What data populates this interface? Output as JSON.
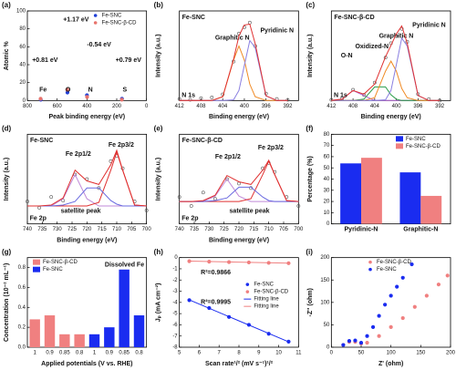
{
  "chart_data": [
    {
      "type": "scatter",
      "panel": "(a)",
      "ylabel": "Atomic %",
      "xlabel": "Peak binding energy (eV)",
      "xlim": [
        800,
        0
      ],
      "xticks": [
        800,
        600,
        400,
        200,
        0
      ],
      "ylim": [
        0,
        100
      ],
      "yticks": [
        0,
        20,
        40,
        60,
        80,
        100
      ],
      "legend": "upper right",
      "series": [
        {
          "name": "Fe-SNC",
          "color": "#1f3fd6",
          "x": [
            710,
            531,
            400,
            165
          ],
          "values": [
            1,
            9,
            6,
            2
          ]
        },
        {
          "name": "Fe-SNC-β-CD",
          "color": "#e8736c",
          "x": [
            711,
            532,
            399,
            166
          ],
          "values": [
            2,
            12,
            4,
            1
          ]
        }
      ],
      "annotations": [
        "Fe",
        "O",
        "N",
        "S",
        "+0.81 eV",
        "+1.17 eV",
        "-0.54 eV",
        "+0.79 eV"
      ]
    },
    {
      "type": "line",
      "panel": "(b)",
      "title": "Fe-SNC",
      "ylabel": "Intensity (a.u.)",
      "xlabel": "Binding energy (eV)",
      "xlim": [
        412,
        390
      ],
      "xticks": [
        412,
        408,
        404,
        400,
        396,
        392
      ],
      "ylim": [
        0,
        115
      ],
      "x": [
        412,
        410,
        408,
        406,
        404,
        402,
        401,
        400,
        399,
        398,
        396,
        394,
        392
      ],
      "series": [
        {
          "color": "#555555",
          "mode": "open-markers",
          "values": [
            2,
            1,
            3,
            4,
            8,
            50,
            86,
            94,
            100,
            70,
            9,
            2,
            1
          ]
        },
        {
          "name": "Graphitic N",
          "color": "#f08a24",
          "values": [
            0,
            0,
            0,
            0,
            5,
            52,
            70,
            52,
            21,
            5,
            0,
            0,
            0
          ]
        },
        {
          "name": "Pyridinic N",
          "color": "#8a7fe0",
          "values": [
            0,
            0,
            0,
            0,
            0,
            1,
            13,
            45,
            77,
            68,
            6,
            0,
            0
          ]
        },
        {
          "color": "#e03030",
          "values": [
            0,
            0,
            0,
            0,
            5,
            53,
            83,
            97,
            98,
            73,
            6,
            0,
            0
          ]
        }
      ],
      "annotations": [
        "N 1s"
      ]
    },
    {
      "type": "line",
      "panel": "(c)",
      "title": "Fe-SNC-β-CD",
      "ylabel": "Intensity (a.u.)",
      "xlabel": "Binding energy (eV)",
      "xlim": [
        412,
        390
      ],
      "xticks": [
        412,
        408,
        404,
        400,
        396,
        392
      ],
      "ylim": [
        0,
        125
      ],
      "x": [
        412,
        410,
        408,
        406,
        404,
        402,
        401,
        400,
        399,
        398,
        396,
        394,
        392
      ],
      "series": [
        {
          "color": "#555555",
          "mode": "open-markers",
          "values": [
            1,
            3,
            15,
            8,
            25,
            60,
            80,
            90,
            100,
            82,
            9,
            2,
            0
          ]
        },
        {
          "name": "O-N",
          "color": "#b060d0",
          "values": [
            0,
            2,
            14,
            7,
            0,
            0,
            0,
            0,
            0,
            0,
            0,
            0,
            0
          ]
        },
        {
          "name": "Oxidized-N",
          "color": "#2a9d4a",
          "values": [
            0,
            0,
            0,
            2,
            19,
            19,
            8,
            2,
            0,
            0,
            0,
            0,
            0
          ]
        },
        {
          "name": "Graphitic N",
          "color": "#f08a24",
          "values": [
            0,
            0,
            0,
            0,
            4,
            41,
            55,
            41,
            17,
            4,
            0,
            0,
            0
          ]
        },
        {
          "name": "Pyridinic N",
          "color": "#8a7fe0",
          "values": [
            0,
            0,
            0,
            0,
            0,
            1,
            14,
            50,
            87,
            76,
            7,
            0,
            0
          ]
        },
        {
          "color": "#e03030",
          "values": [
            0,
            2,
            14,
            9,
            23,
            61,
            77,
            93,
            104,
            80,
            7,
            0,
            0
          ]
        }
      ],
      "annotations": [
        "N 1s"
      ]
    },
    {
      "type": "line",
      "panel": "(d)",
      "title": "Fe-SNC",
      "ylabel": "Intensity (a.u.)",
      "xlabel": "Binding energy (eV)",
      "xlim": [
        740,
        700
      ],
      "xticks": [
        740,
        735,
        730,
        725,
        720,
        715,
        710,
        705,
        700
      ],
      "ylim": [
        0,
        100
      ],
      "x": [
        740,
        736,
        732,
        728,
        724,
        720,
        716,
        712,
        710,
        708,
        704,
        700
      ],
      "series": [
        {
          "color": "#555555",
          "mode": "open-markers",
          "values": [
            25,
            18,
            30,
            26,
            55,
            50,
            40,
            70,
            76,
            62,
            25,
            15
          ]
        },
        {
          "name": "Fe 2p1/2",
          "color": "#c08ad8",
          "values": [
            20,
            20,
            20,
            28,
            55,
            28,
            20,
            20,
            20,
            20,
            20,
            20
          ]
        },
        {
          "name": "Fe 2p3/2",
          "color": "#e03030",
          "values": [
            20,
            20,
            20,
            20,
            20,
            20,
            24,
            60,
            80,
            60,
            21,
            20
          ]
        },
        {
          "name": "satellite peak",
          "color": "#6a6ae0",
          "values": [
            20,
            20,
            20,
            21,
            25,
            40,
            40,
            26,
            22,
            20,
            20,
            20
          ]
        },
        {
          "color": "#e03030",
          "values": [
            20,
            20,
            21,
            29,
            60,
            48,
            44,
            66,
            82,
            60,
            21,
            20
          ]
        }
      ],
      "annotations": [
        "Fe 2p"
      ]
    },
    {
      "type": "line",
      "panel": "(e)",
      "title": "Fe-SNC-β-CD",
      "ylabel": "Intensity (a.u.)",
      "xlabel": "Binding energy (eV)",
      "xlim": [
        740,
        700
      ],
      "xticks": [
        740,
        735,
        730,
        725,
        720,
        715,
        710,
        705,
        700
      ],
      "ylim": [
        0,
        100
      ],
      "x": [
        740,
        736,
        732,
        728,
        724,
        720,
        716,
        712,
        710,
        708,
        704,
        700
      ],
      "series": [
        {
          "color": "#555555",
          "mode": "open-markers",
          "values": [
            30,
            20,
            35,
            28,
            50,
            45,
            40,
            62,
            68,
            58,
            30,
            20
          ]
        },
        {
          "name": "Fe 2p1/2",
          "color": "#c08ad8",
          "values": [
            25,
            25,
            25,
            31,
            50,
            31,
            25,
            25,
            25,
            25,
            25,
            25
          ]
        },
        {
          "name": "Fe 2p3/2",
          "color": "#e03030",
          "values": [
            25,
            25,
            25,
            25,
            25,
            25,
            28,
            55,
            70,
            55,
            26,
            25
          ]
        },
        {
          "name": "satellite peak",
          "color": "#6a6ae0",
          "values": [
            25,
            25,
            25,
            26,
            29,
            41,
            41,
            30,
            26,
            25,
            25,
            25
          ]
        },
        {
          "color": "#e03030",
          "values": [
            25,
            25,
            26,
            32,
            54,
            47,
            44,
            60,
            71,
            55,
            26,
            25
          ]
        }
      ],
      "annotations": [
        "Fe 2p"
      ]
    },
    {
      "type": "bar",
      "panel": "(f)",
      "ylabel": "Percentage (%)",
      "categories": [
        "Pyridinic-N",
        "Graphitic-N"
      ],
      "ylim": [
        0,
        80
      ],
      "yticks": [
        0,
        10,
        20,
        30,
        40,
        50,
        60,
        70,
        80
      ],
      "legend": "upper right",
      "series": [
        {
          "name": "Fe-SNC",
          "color": "#1a2cf0",
          "values": [
            54,
            46
          ]
        },
        {
          "name": "Fe-SNC-β-CD",
          "color": "#f08080",
          "values": [
            59,
            25
          ]
        }
      ]
    },
    {
      "type": "bar",
      "panel": "(g)",
      "ylabel": "Concentration (10⁻² mL⁻¹)",
      "xlabel": "Applied potentials (V vs. RHE)",
      "categories": [
        "1",
        "0.9",
        "0.85",
        "0.8",
        "1",
        "0.9",
        "0.85",
        "0.8"
      ],
      "ylim": [
        0,
        0.9
      ],
      "yticks": [
        {
          "value": 0,
          "label": "0.0"
        },
        0.2,
        0.4,
        0.6,
        0.8
      ],
      "legend": "upper left",
      "series": [
        {
          "name": "Fe-SNC-β-CD",
          "color": "#f08080",
          "values": [
            0.28,
            0.32,
            0.13,
            0.13,
            null,
            null,
            null,
            null
          ]
        },
        {
          "name": "Fe-SNC",
          "color": "#1a2cf0",
          "values": [
            null,
            null,
            null,
            null,
            0.13,
            0.2,
            0.78,
            0.32
          ]
        }
      ],
      "annotations": [
        "Dissolved Fe"
      ]
    },
    {
      "type": "line",
      "panel": "(h)",
      "ylabel": "Jₚ (mA cm⁻²)",
      "xlabel": "Scan rate¹/² (mV s⁻¹)¹/²",
      "xlim": [
        5,
        11
      ],
      "xticks": [
        5,
        6,
        7,
        8,
        9,
        10,
        11
      ],
      "ylim": [
        -8,
        0
      ],
      "yticks": [
        0,
        -1,
        -2,
        -3,
        -4,
        -5,
        -6,
        -7,
        -8
      ],
      "legend": "center right",
      "series": [
        {
          "name": "Fe-SNC",
          "color": "#1a2cf0",
          "mode": "markers",
          "x": [
            5.5,
            6.5,
            7.5,
            8.5,
            9.5,
            10.5
          ],
          "values": [
            -3.8,
            -4.5,
            -5.3,
            -6.0,
            -6.8,
            -7.5
          ]
        },
        {
          "name": "Fe-SNC-β-CD",
          "color": "#f08080",
          "mode": "markers",
          "x": [
            5.5,
            6.5,
            7.5,
            8.5,
            9.5,
            10.5
          ],
          "values": [
            -0.32,
            -0.36,
            -0.4,
            -0.43,
            -0.47,
            -0.5
          ]
        },
        {
          "name": "Fitting line",
          "color": "#1a2cf0",
          "x": [
            5.5,
            10.5
          ],
          "values": [
            -3.78,
            -7.52
          ]
        },
        {
          "name": "Fitting line",
          "color": "#f08080",
          "x": [
            5.5,
            10.5
          ],
          "values": [
            -0.31,
            -0.5
          ]
        }
      ],
      "annotations": [
        "R²=0.9866",
        "R²=0.9995"
      ]
    },
    {
      "type": "scatter",
      "panel": "(i)",
      "ylabel": "-Z'' (ohm)",
      "xlabel": "Z' (ohm)",
      "xlim": [
        0,
        200
      ],
      "xticks": [
        0,
        50,
        100,
        150,
        200
      ],
      "ylim": [
        0,
        200
      ],
      "yticks": [
        0,
        50,
        100,
        150,
        200
      ],
      "legend": "upper left",
      "series": [
        {
          "name": "Fe-SNC-β-CD",
          "color": "#f08080",
          "x": [
            20,
            30,
            40,
            50,
            60,
            80,
            100,
            120,
            140,
            160,
            180,
            195
          ],
          "values": [
            5,
            12,
            12,
            8,
            10,
            25,
            45,
            65,
            90,
            115,
            140,
            160
          ]
        },
        {
          "name": "Fe-SNC",
          "color": "#1a2cf0",
          "x": [
            20,
            30,
            40,
            50,
            60,
            70,
            80,
            90,
            100,
            110,
            120,
            135
          ],
          "values": [
            5,
            14,
            15,
            10,
            25,
            45,
            70,
            95,
            115,
            135,
            155,
            185
          ]
        }
      ]
    }
  ]
}
